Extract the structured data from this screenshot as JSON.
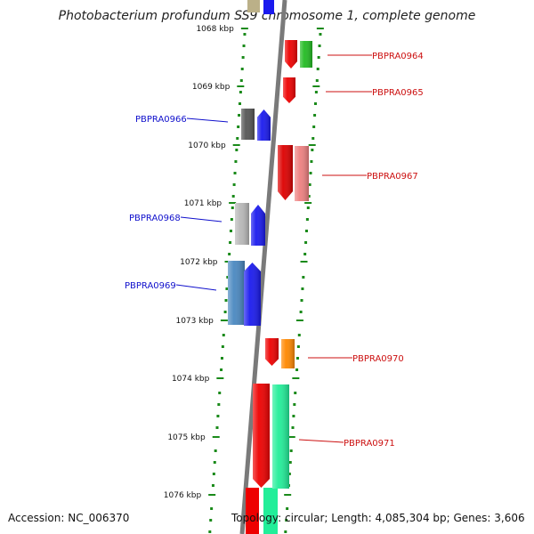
{
  "title": "Photobacterium profundum SS9 chromosome 1, complete genome",
  "footer": {
    "accession": "Accession: NC_006370",
    "summary": "Topology: circular; Length: 4,085,304 bp; Genes: 3,606"
  },
  "colors": {
    "backbone": "#7a7a7a",
    "tick": "#1a8a1a",
    "reverse_label": "#1010cc",
    "forward_label": "#cc1010"
  },
  "kbp_marks": [
    "1068 kbp",
    "1069 kbp",
    "1070 kbp",
    "1071 kbp",
    "1072 kbp",
    "1073 kbp",
    "1074 kbp",
    "1075 kbp",
    "1076 kbp"
  ],
  "genes": [
    {
      "label": "PBPRA0964",
      "strand": "forward",
      "color": "#ee0000",
      "cog_color": "#22bb22"
    },
    {
      "label": "PBPRA0965",
      "strand": "forward",
      "color": "#ee0000",
      "cog_color": ""
    },
    {
      "label": "PBPRA0966",
      "strand": "reverse",
      "color": "#1a1aee",
      "cog_color": "#555555"
    },
    {
      "label": "PBPRA0967",
      "strand": "forward",
      "color": "#dd0000",
      "cog_color": "#ee8080"
    },
    {
      "label": "PBPRA0968",
      "strand": "reverse",
      "color": "#1a1aee",
      "cog_color": "#b8b8b8"
    },
    {
      "label": "PBPRA0969",
      "strand": "reverse",
      "color": "#1a1aee",
      "cog_color": "#4a88c0"
    },
    {
      "label": "PBPRA0970",
      "strand": "forward",
      "color": "#ee0000",
      "cog_color": "#ff8800"
    },
    {
      "label": "PBPRA0971",
      "strand": "forward",
      "color": "#ee0000",
      "cog_color": "#22ee99"
    }
  ]
}
